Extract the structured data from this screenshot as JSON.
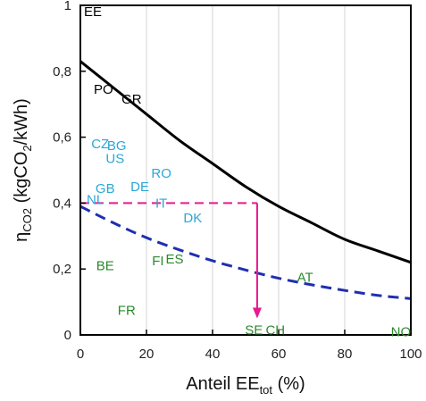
{
  "chart_data": {
    "type": "line",
    "xlabel": {
      "main": "Anteil EE",
      "sub": "tot",
      "suffix": " (%)"
    },
    "ylabel": {
      "eta": "η",
      "sub1": "CO2",
      "mid": " (kgCO",
      "sub2": "2",
      "end": "/kWh)"
    },
    "xlim": [
      0,
      100
    ],
    "ylim": [
      0,
      1
    ],
    "x_ticks": [
      0,
      20,
      40,
      60,
      80,
      100
    ],
    "y_ticks": [
      {
        "value": 0,
        "label": "0"
      },
      {
        "value": 0.2,
        "label": "0,2"
      },
      {
        "value": 0.4,
        "label": "0,4"
      },
      {
        "value": 0.6,
        "label": "0,6"
      },
      {
        "value": 0.8,
        "label": "0,8"
      },
      {
        "value": 1,
        "label": "1"
      }
    ],
    "grid": "vertical",
    "corner_label": "EE",
    "series": [
      {
        "style": "solid",
        "color": "#000000",
        "x": [
          0,
          10,
          20,
          30,
          40,
          50,
          60,
          70,
          80,
          90,
          100
        ],
        "y": [
          0.83,
          0.75,
          0.67,
          0.59,
          0.52,
          0.45,
          0.39,
          0.34,
          0.29,
          0.255,
          0.22
        ]
      },
      {
        "style": "dashed",
        "color": "#1f2fb0",
        "x": [
          0,
          10,
          20,
          30,
          40,
          50,
          60,
          70,
          80,
          90,
          100
        ],
        "y": [
          0.39,
          0.34,
          0.295,
          0.258,
          0.225,
          0.197,
          0.172,
          0.152,
          0.135,
          0.12,
          0.11
        ]
      }
    ],
    "reference": {
      "color": "#e8198f",
      "y": 0.4,
      "x_start": 0,
      "x_end": 53.5,
      "arrow_to_y": 0.05
    },
    "countries": [
      {
        "code": "PO",
        "x": 7,
        "y": 0.745,
        "color": "#000000"
      },
      {
        "code": "GR",
        "x": 15.5,
        "y": 0.715,
        "color": "#000000"
      },
      {
        "code": "CZ",
        "x": 6,
        "y": 0.58,
        "color": "#29a8d8"
      },
      {
        "code": "BG",
        "x": 11,
        "y": 0.575,
        "color": "#29a8d8"
      },
      {
        "code": "US",
        "x": 10.5,
        "y": 0.535,
        "color": "#29a8d8"
      },
      {
        "code": "RO",
        "x": 24.5,
        "y": 0.49,
        "color": "#29a8d8"
      },
      {
        "code": "DE",
        "x": 18,
        "y": 0.45,
        "color": "#29a8d8"
      },
      {
        "code": "GB",
        "x": 7.5,
        "y": 0.445,
        "color": "#29a8d8"
      },
      {
        "code": "NL",
        "x": 4.5,
        "y": 0.41,
        "color": "#29a8d8"
      },
      {
        "code": "IT",
        "x": 24.5,
        "y": 0.4,
        "color": "#29a8d8"
      },
      {
        "code": "DK",
        "x": 34,
        "y": 0.355,
        "color": "#29a8d8"
      },
      {
        "code": "BE",
        "x": 7.5,
        "y": 0.21,
        "color": "#2a8a2a"
      },
      {
        "code": "FI",
        "x": 23.5,
        "y": 0.225,
        "color": "#2a8a2a"
      },
      {
        "code": "ES",
        "x": 28.5,
        "y": 0.23,
        "color": "#2a8a2a"
      },
      {
        "code": "AT",
        "x": 68,
        "y": 0.175,
        "color": "#2a8a2a"
      },
      {
        "code": "FR",
        "x": 14,
        "y": 0.075,
        "color": "#2a8a2a"
      },
      {
        "code": "SE",
        "x": 52.5,
        "y": 0.015,
        "color": "#2a8a2a"
      },
      {
        "code": "CH",
        "x": 59,
        "y": 0.015,
        "color": "#2a8a2a"
      },
      {
        "code": "NO",
        "x": 97,
        "y": 0.01,
        "color": "#2a8a2a"
      }
    ]
  }
}
